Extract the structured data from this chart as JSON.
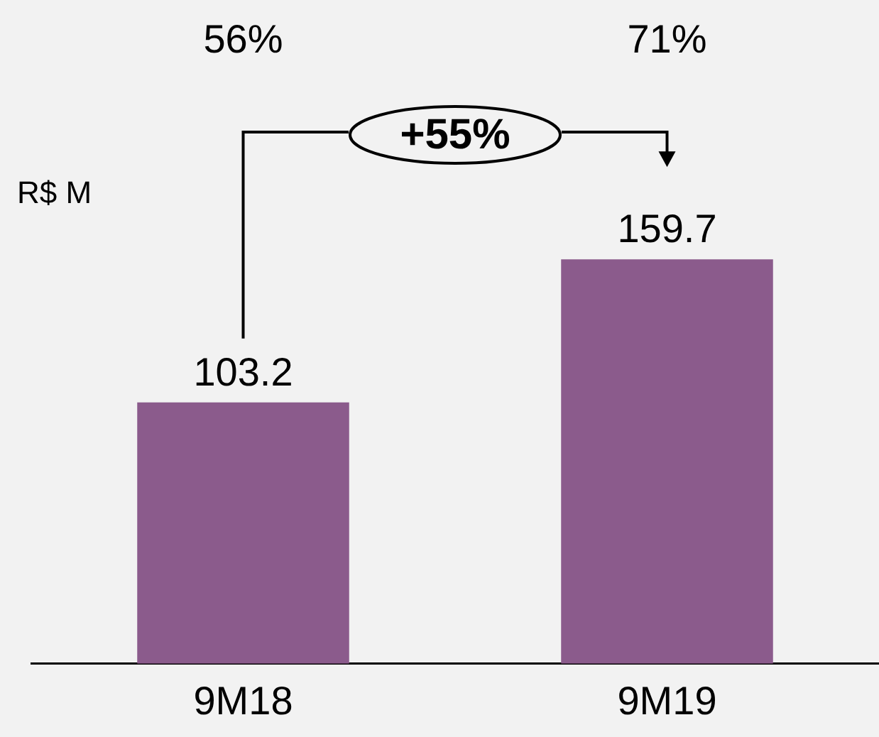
{
  "chart_data": {
    "type": "bar",
    "ylabel": "R$ M",
    "categories": [
      "9M18",
      "9M19"
    ],
    "values": [
      103.2,
      159.7
    ],
    "color": "#8b5b8c",
    "data_labels": true,
    "annotations": [
      "56%",
      "71%",
      "+55%"
    ]
  }
}
